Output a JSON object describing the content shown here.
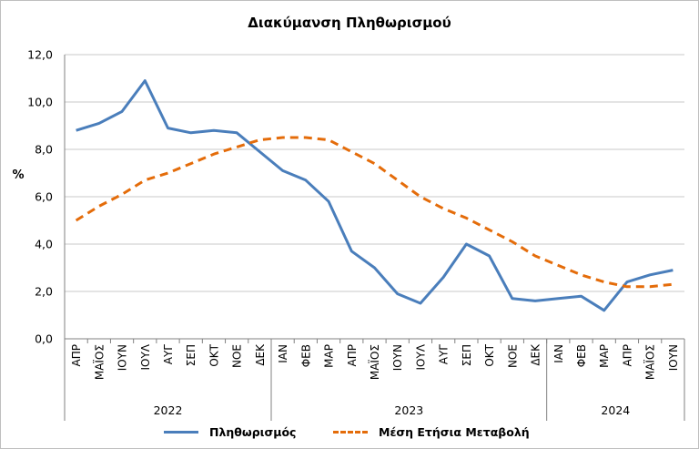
{
  "chart_data": {
    "type": "line",
    "title": "Διακύμανση Πληθωρισμού",
    "ylabel": "%",
    "ylim": [
      0,
      12
    ],
    "yticks": [
      "0,0",
      "2,0",
      "4,0",
      "6,0",
      "8,0",
      "10,0",
      "12,0"
    ],
    "grid": true,
    "legend_position": "bottom",
    "categories": [
      "ΑΠΡ",
      "ΜΑΪΟΣ",
      "ΙΟΥΝ",
      "ΙΟΥΛ",
      "ΑΥΓ",
      "ΣΕΠ",
      "ΟΚΤ",
      "ΝΟΕ",
      "ΔΕΚ",
      "ΙΑΝ",
      "ΦΕΒ",
      "ΜΑΡ",
      "ΑΠΡ",
      "ΜΑΪΟΣ",
      "ΙΟΥΝ",
      "ΙΟΥΛ",
      "ΑΥΓ",
      "ΣΕΠ",
      "ΟΚΤ",
      "ΝΟΕ",
      "ΔΕΚ",
      "ΙΑΝ",
      "ΦΕΒ",
      "ΜΑΡ",
      "ΑΠΡ",
      "ΜΑΪΟΣ",
      "ΙΟΥΝ"
    ],
    "year_groups": [
      {
        "label": "2022",
        "start": 0,
        "count": 9
      },
      {
        "label": "2023",
        "start": 9,
        "count": 12
      },
      {
        "label": "2024",
        "start": 21,
        "count": 6
      }
    ],
    "series": [
      {
        "name": "Πληθωρισμός",
        "color": "#4a7ebb",
        "style": "solid",
        "values": [
          8.8,
          9.1,
          9.6,
          10.9,
          8.9,
          8.7,
          8.8,
          8.7,
          7.9,
          7.1,
          6.7,
          5.8,
          3.7,
          3.0,
          1.9,
          1.5,
          2.6,
          4.0,
          3.5,
          1.7,
          1.6,
          1.7,
          1.8,
          1.2,
          2.4,
          2.7,
          2.9
        ]
      },
      {
        "name": "Μέση Ετήσια Μεταβολή",
        "color": "#e46c0a",
        "style": "dashed",
        "values": [
          5.0,
          5.6,
          6.1,
          6.7,
          7.0,
          7.4,
          7.8,
          8.1,
          8.4,
          8.5,
          8.5,
          8.4,
          7.9,
          7.4,
          6.7,
          6.0,
          5.5,
          5.1,
          4.6,
          4.1,
          3.5,
          3.1,
          2.7,
          2.4,
          2.2,
          2.2,
          2.3
        ]
      }
    ]
  }
}
